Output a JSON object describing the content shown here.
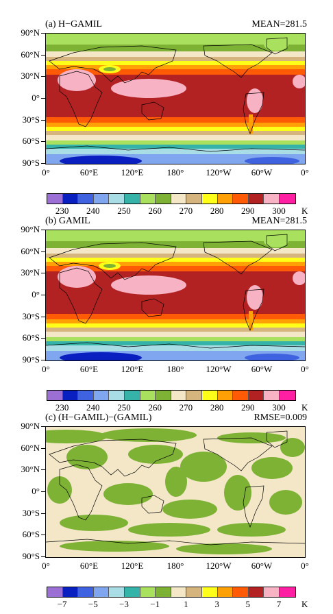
{
  "panels": [
    {
      "title": "(a)  H−GAMIL",
      "stat": "MEAN=281.5",
      "variant": "temperature",
      "colorbar_labels": [
        "230",
        "240",
        "250",
        "260",
        "270",
        "280",
        "290",
        "300"
      ],
      "unit": "K"
    },
    {
      "title": "(b)  GAMIL",
      "stat": "MEAN=281.5",
      "variant": "temperature",
      "colorbar_labels": [
        "230",
        "240",
        "250",
        "260",
        "270",
        "280",
        "290",
        "300"
      ],
      "unit": "K"
    },
    {
      "title": "(c)  (H−GAMIL)−(GAMIL)",
      "stat": "RMSE=0.009",
      "variant": "difference",
      "colorbar_labels": [
        "−7",
        "−5",
        "−3",
        "−1",
        "1",
        "3",
        "5",
        "7"
      ],
      "unit": "K"
    }
  ],
  "y_axis_labels": [
    "90°N",
    "60°N",
    "30°N",
    "0°",
    "30°S",
    "60°S",
    "90°S"
  ],
  "x_axis_labels": [
    "0°",
    "60°E",
    "120°E",
    "180°",
    "120°W",
    "60°W",
    "0°"
  ],
  "colorbar_colors": [
    "#9b6fd3",
    "#0a1fbf",
    "#3f63e0",
    "#7fa6ee",
    "#a9dde6",
    "#35b3a9",
    "#a9e05e",
    "#7db235",
    "#f3e7c8",
    "#d6b47e",
    "#ffff19",
    "#ffa007",
    "#ff5a05",
    "#b22222",
    "#f7b2c4",
    "#ff1fa2"
  ],
  "chart_data": [
    {
      "type": "heatmap",
      "title": "(a)  H−GAMIL",
      "annotation": "MEAN=281.5",
      "colorbar_levels": [
        230,
        235,
        240,
        245,
        250,
        255,
        260,
        265,
        270,
        275,
        280,
        285,
        290,
        295,
        300
      ],
      "unit": "K",
      "x_range": [
        "0°",
        "0°"
      ],
      "y_range": [
        "90°S",
        "90°N"
      ],
      "zonal_bands": [
        {
          "lat_from": 90,
          "lat_to": 70,
          "level": 260
        },
        {
          "lat_from": 70,
          "lat_to": 55,
          "level": 270
        },
        {
          "lat_from": 55,
          "lat_to": 40,
          "level": 280
        },
        {
          "lat_from": 40,
          "lat_to": 30,
          "level": 290
        },
        {
          "lat_from": 30,
          "lat_to": -30,
          "level": 295
        },
        {
          "lat_from": -30,
          "lat_to": -45,
          "level": 285
        },
        {
          "lat_from": -45,
          "lat_to": -60,
          "level": 275
        },
        {
          "lat_from": -60,
          "lat_to": -70,
          "level": 260
        },
        {
          "lat_from": -70,
          "lat_to": -90,
          "level": 240
        }
      ]
    },
    {
      "type": "heatmap",
      "title": "(b)  GAMIL",
      "annotation": "MEAN=281.5",
      "colorbar_levels": [
        230,
        235,
        240,
        245,
        250,
        255,
        260,
        265,
        270,
        275,
        280,
        285,
        290,
        295,
        300
      ],
      "unit": "K",
      "x_range": [
        "0°",
        "0°"
      ],
      "y_range": [
        "90°S",
        "90°N"
      ],
      "zonal_bands": [
        {
          "lat_from": 90,
          "lat_to": 70,
          "level": 260
        },
        {
          "lat_from": 70,
          "lat_to": 55,
          "level": 270
        },
        {
          "lat_from": 55,
          "lat_to": 40,
          "level": 280
        },
        {
          "lat_from": 40,
          "lat_to": 30,
          "level": 290
        },
        {
          "lat_from": 30,
          "lat_to": -30,
          "level": 295
        },
        {
          "lat_from": -30,
          "lat_to": -45,
          "level": 285
        },
        {
          "lat_from": -45,
          "lat_to": -60,
          "level": 275
        },
        {
          "lat_from": -60,
          "lat_to": -70,
          "level": 260
        },
        {
          "lat_from": -70,
          "lat_to": -90,
          "level": 240
        }
      ]
    },
    {
      "type": "heatmap",
      "title": "(c)  (H−GAMIL)−(GAMIL)",
      "annotation": "RMSE=0.009",
      "colorbar_levels": [
        -7,
        -6,
        -5,
        -4,
        -3,
        -2,
        -1,
        0,
        1,
        2,
        3,
        4,
        5,
        6,
        7
      ],
      "unit": "K",
      "x_range": [
        "0°",
        "0°"
      ],
      "y_range": [
        "90°S",
        "90°N"
      ],
      "value_range_shown": [
        -1,
        1
      ]
    }
  ]
}
